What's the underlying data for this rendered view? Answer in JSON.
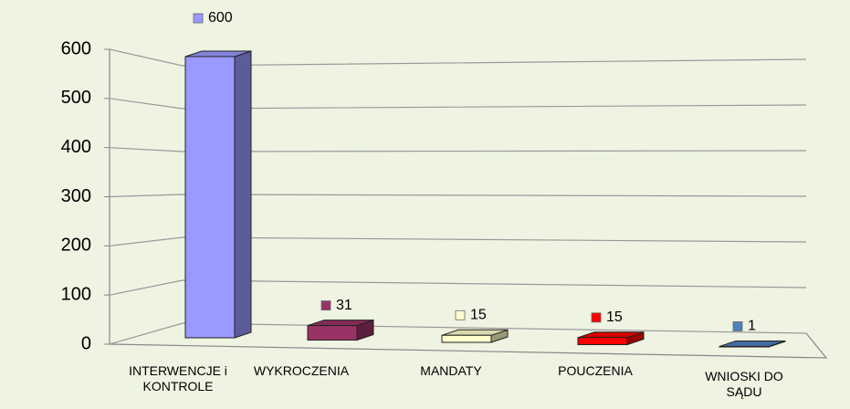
{
  "chart_data": {
    "type": "bar3d",
    "categories": [
      "INTERWENCJE i KONTROLE",
      "WYKROCZENIA",
      "MANDATY",
      "POUCZENIA",
      "WNIOSKI DO SĄDU"
    ],
    "values": [
      600,
      31,
      15,
      15,
      1
    ],
    "colors": [
      "#9999ff",
      "#993366",
      "#ffffcc",
      "#ff0000",
      "#4f81bd"
    ],
    "ylim": [
      0,
      600
    ],
    "yticks": [
      0,
      100,
      200,
      300,
      400,
      500,
      600
    ],
    "grid": true
  }
}
